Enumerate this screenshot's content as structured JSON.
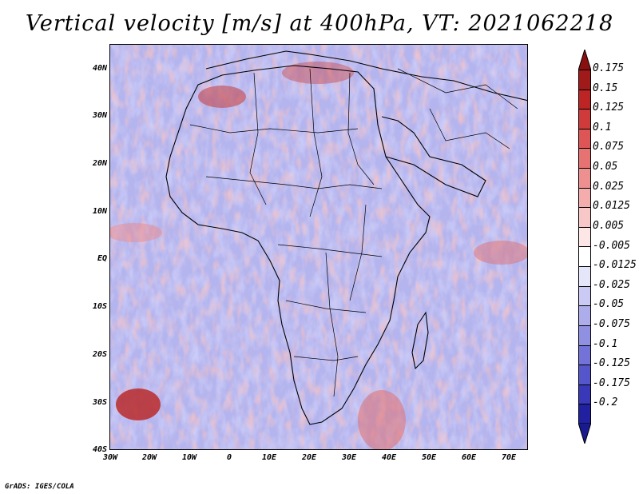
{
  "title": "Vertical velocity [m/s] at 400hPa, VT: 2021062218",
  "lat_ticks": [
    "40N",
    "30N",
    "20N",
    "10N",
    "EQ",
    "10S",
    "20S",
    "30S",
    "40S"
  ],
  "lon_ticks": [
    "30W",
    "20W",
    "10W",
    "0",
    "10E",
    "20E",
    "30E",
    "40E",
    "50E",
    "60E",
    "70E"
  ],
  "colorbar": {
    "labels": [
      "0.175",
      "0.15",
      "0.125",
      "0.1",
      "0.075",
      "0.05",
      "0.025",
      "0.0125",
      "0.005",
      "-0.005",
      "-0.0125",
      "-0.025",
      "-0.05",
      "-0.075",
      "-0.1",
      "-0.125",
      "-0.175",
      "-0.2"
    ],
    "colors": [
      "#a01a1a",
      "#bd2525",
      "#cf3a3a",
      "#dd5555",
      "#e77272",
      "#ef9090",
      "#f4acac",
      "#f8c8c8",
      "#fce6e6",
      "#ffffff",
      "#e6e6fb",
      "#cacaf4",
      "#adadeb",
      "#9090e2",
      "#7272d8",
      "#5555cc",
      "#3838b8",
      "#2020a0"
    ],
    "top_cap_color": "#8a1010",
    "bottom_cap_color": "#1a1a90"
  },
  "footer": "GrADS: IGES/COLA"
}
